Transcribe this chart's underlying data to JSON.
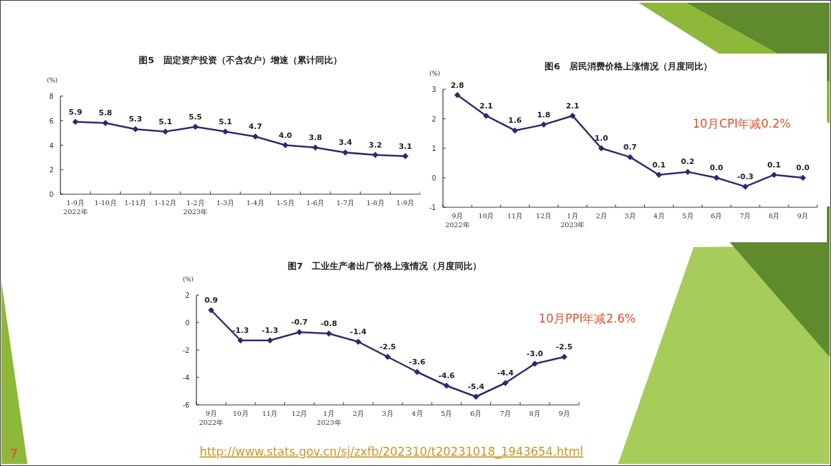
{
  "chart_data": [
    {
      "type": "line",
      "title": "图5　固定资产投资（不含农户）增速（累计同比）",
      "ylabel": "(%)",
      "categories": [
        "1-9月\n2022年",
        "1-10月",
        "1-11月",
        "1-12月",
        "1-2月\n2023年",
        "1-3月",
        "1-4月",
        "1-5月",
        "1-6月",
        "1-7月",
        "1-8月",
        "1-9月"
      ],
      "series": [
        {
          "color": "#2a2a6e",
          "values": [
            5.9,
            5.8,
            5.3,
            5.1,
            5.5,
            5.1,
            4.7,
            4.0,
            3.8,
            3.4,
            3.2,
            3.1
          ],
          "value_labels": [
            "5.9",
            "5.8",
            "5.3",
            "5.1",
            "5.5",
            "5.1",
            "4.7",
            "4.0",
            "3.8",
            "3.4",
            "3.2",
            "3.1"
          ]
        }
      ],
      "ylim": [
        0,
        8
      ],
      "yticks": [
        0,
        2,
        4,
        6,
        8
      ],
      "marker": "diamond",
      "line_style": "solid",
      "grid": false
    },
    {
      "type": "line",
      "title": "图6　居民消费价格上涨情况（月度同比）",
      "ylabel": "(%)",
      "categories": [
        "9月\n2022年",
        "10月",
        "11月",
        "12月",
        "1月\n2023年",
        "2月",
        "3月",
        "4月",
        "5月",
        "6月",
        "7月",
        "8月",
        "9月"
      ],
      "series": [
        {
          "color": "#2a2a6e",
          "values": [
            2.8,
            2.1,
            1.6,
            1.8,
            2.1,
            1.0,
            0.7,
            0.1,
            0.2,
            0.0,
            -0.3,
            0.1,
            0.0
          ],
          "value_labels": [
            "2.8",
            "2.1",
            "1.6",
            "1.8",
            "2.1",
            "1.0",
            "0.7",
            "0.1",
            "0.2",
            "0.0",
            "-0.3",
            "0.1",
            "0.0"
          ]
        }
      ],
      "ylim": [
        -1,
        3
      ],
      "yticks": [
        -1,
        0,
        1,
        2,
        3
      ],
      "marker": "diamond",
      "line_style": "solid",
      "grid": false,
      "annotations": [
        "10月CPI年减0.2%"
      ]
    },
    {
      "type": "line",
      "title": "图7　工业生产者出厂价格上涨情况（月度同比）",
      "ylabel": "(%)",
      "categories": [
        "9月\n2022年",
        "10月",
        "11月",
        "12月",
        "1月\n2023年",
        "2月",
        "3月",
        "4月",
        "5月",
        "6月",
        "7月",
        "8月",
        "9月"
      ],
      "series": [
        {
          "color": "#2a2a6e",
          "values": [
            0.9,
            -1.3,
            -1.3,
            -0.7,
            -0.8,
            -1.4,
            -2.5,
            -3.6,
            -4.6,
            -5.4,
            -4.4,
            -3.0,
            -2.5
          ],
          "value_labels": [
            "0.9",
            "-1.3",
            "-1.3",
            "-0.7",
            "-0.8",
            "-1.4",
            "-2.5",
            "-3.6",
            "-4.6",
            "-5.4",
            "-4.4",
            "-3.0",
            "-2.5"
          ]
        }
      ],
      "ylim": [
        -6,
        2
      ],
      "yticks": [
        -6,
        -4,
        -2,
        0,
        2
      ],
      "marker": "diamond",
      "line_style": "solid",
      "grid": false,
      "annotations": [
        "10月PPI年减2.6%",
        "http://www.stats.gov.cn/sj/zxfb/202310/t20231018_1943654.html",
        "7"
      ]
    }
  ]
}
